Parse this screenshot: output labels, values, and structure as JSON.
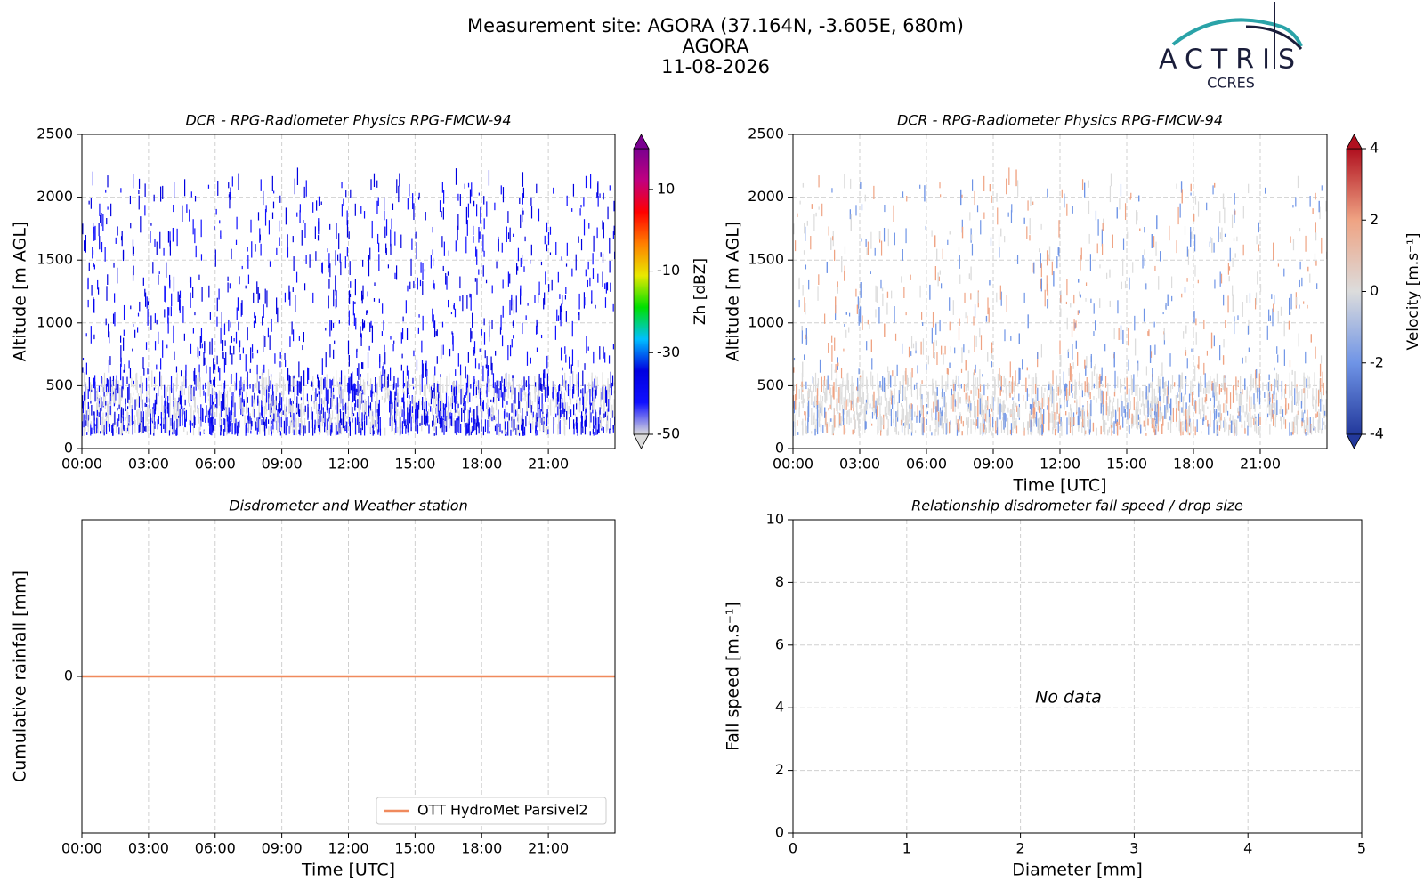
{
  "header": {
    "title_lines": [
      "Measurement site: AGORA (37.164N, -3.605E, 680m)",
      "AGORA",
      "11-08-2026"
    ],
    "logo": {
      "name": "ACTRIS",
      "subtitle": "CCRES"
    }
  },
  "chart_data": [
    {
      "type": "heatmap",
      "title": "DCR - RPG-Radiometer Physics RPG-FMCW-94",
      "ylabel": "Altitude [m AGL]",
      "xlim": [
        0,
        24
      ],
      "xticks": [
        {
          "value": 0,
          "label": "00:00"
        },
        {
          "value": 3,
          "label": "03:00"
        },
        {
          "value": 6,
          "label": "06:00"
        },
        {
          "value": 9,
          "label": "09:00"
        },
        {
          "value": 12,
          "label": "12:00"
        },
        {
          "value": 15,
          "label": "15:00"
        },
        {
          "value": 18,
          "label": "18:00"
        },
        {
          "value": 21,
          "label": "21:00"
        }
      ],
      "ylim": [
        0,
        2500
      ],
      "yticks": [
        0,
        500,
        1000,
        1500,
        2000,
        2500
      ],
      "grid": true,
      "colorbar": {
        "label": "Zh [dBZ]",
        "clim": [
          -50,
          20
        ],
        "ticks": [
          -50,
          -30,
          -10,
          10
        ],
        "colors": [
          "#dcdcdc",
          "#1010ff",
          "#0000e0",
          "#00c0ff",
          "#00e000",
          "#e8e800",
          "#ff8000",
          "#ff0000",
          "#c00080",
          "#7a0090"
        ]
      }
    },
    {
      "type": "heatmap",
      "title": "DCR - RPG-Radiometer Physics RPG-FMCW-94",
      "ylabel": "Altitude [m AGL]",
      "xlabel": "Time [UTC]",
      "xlim": [
        0,
        24
      ],
      "xticks": [
        {
          "value": 0,
          "label": "00:00"
        },
        {
          "value": 3,
          "label": "03:00"
        },
        {
          "value": 6,
          "label": "06:00"
        },
        {
          "value": 9,
          "label": "09:00"
        },
        {
          "value": 12,
          "label": "12:00"
        },
        {
          "value": 15,
          "label": "15:00"
        },
        {
          "value": 18,
          "label": "18:00"
        },
        {
          "value": 21,
          "label": "21:00"
        }
      ],
      "ylim": [
        0,
        2500
      ],
      "yticks": [
        0,
        500,
        1000,
        1500,
        2000,
        2500
      ],
      "grid": true,
      "colorbar": {
        "label": "Velocity [m.s⁻¹]",
        "clim": [
          -4,
          4
        ],
        "ticks": [
          -4,
          -2,
          0,
          2,
          4
        ],
        "colors": [
          "#23399c",
          "#6f94e6",
          "#dcdcdc",
          "#efa383",
          "#b0101f"
        ]
      }
    },
    {
      "type": "line",
      "title": "Disdrometer and Weather station",
      "ylabel": "Cumulative rainfall [mm]",
      "xlabel": "Time [UTC]",
      "xlim": [
        0,
        24
      ],
      "xticks": [
        {
          "value": 0,
          "label": "00:00"
        },
        {
          "value": 3,
          "label": "03:00"
        },
        {
          "value": 6,
          "label": "06:00"
        },
        {
          "value": 9,
          "label": "09:00"
        },
        {
          "value": 12,
          "label": "12:00"
        },
        {
          "value": 15,
          "label": "15:00"
        },
        {
          "value": 18,
          "label": "18:00"
        },
        {
          "value": 21,
          "label": "21:00"
        }
      ],
      "ylim": [
        -0.055,
        0.055
      ],
      "yticks": [
        0
      ],
      "grid": true,
      "legend": "lower right",
      "series": [
        {
          "name": "OTT HydroMet Parsivel2",
          "color": "#f08a5d",
          "x": [
            0,
            24
          ],
          "values": [
            0,
            0
          ]
        }
      ]
    },
    {
      "type": "scatter",
      "title": "Relationship disdrometer fall speed / drop size",
      "ylabel": "Fall speed [m.s⁻¹]",
      "xlabel": "Diameter [mm]",
      "xlim": [
        0,
        5
      ],
      "xticks": [
        0,
        1,
        2,
        3,
        4,
        5
      ],
      "ylim": [
        0,
        10
      ],
      "yticks": [
        0,
        2,
        4,
        6,
        8,
        10
      ],
      "grid": true,
      "annotation": "No data"
    }
  ]
}
